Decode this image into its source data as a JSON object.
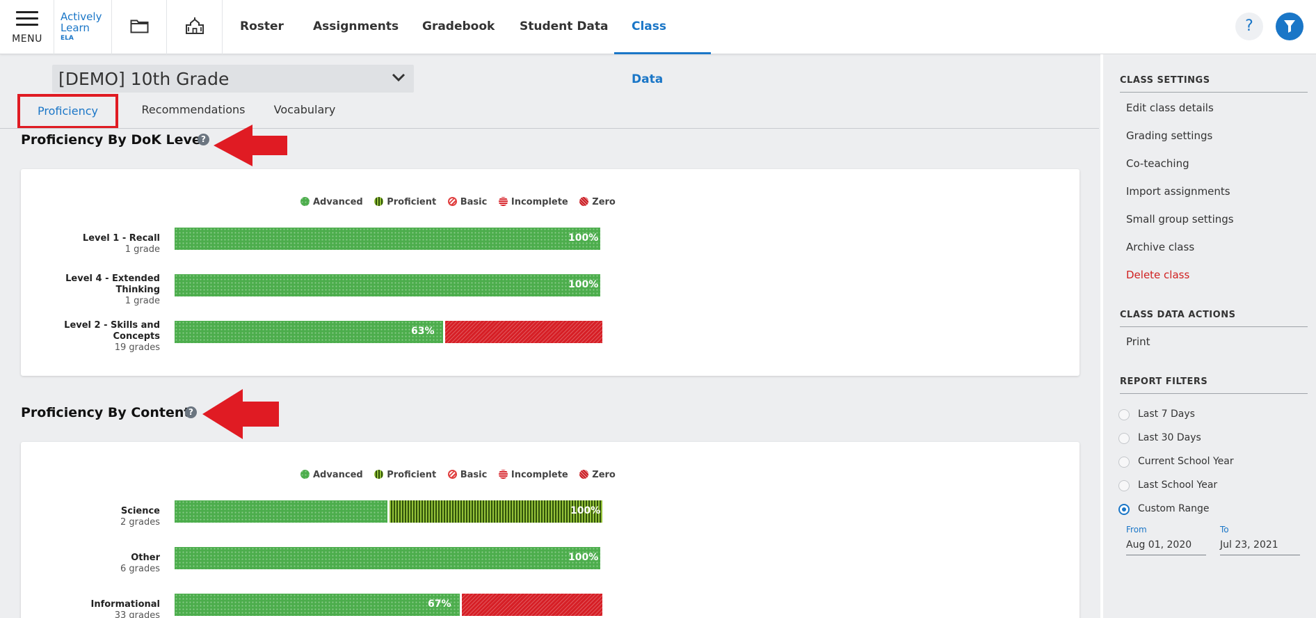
{
  "topbar": {
    "menu_label": "MENU",
    "logo": {
      "line1": "Actively",
      "line2": "Learn",
      "line3": "ELA"
    },
    "nav": [
      "Roster",
      "Assignments",
      "Gradebook",
      "Student Data",
      "Class Data"
    ],
    "active_nav": "Class Data",
    "help_label": "?"
  },
  "class_selector": {
    "value": "[DEMO] 10th Grade"
  },
  "tabs": [
    "Proficiency",
    "Recommendations",
    "Vocabulary"
  ],
  "active_tab": "Proficiency",
  "legend": [
    "Advanced",
    "Proficient",
    "Basic",
    "Incomplete",
    "Zero"
  ],
  "colors": {
    "accent": "#1a76c7",
    "advanced": "#4cad4c",
    "proficient": "#5a8a1e",
    "incomplete": "#d61f26",
    "danger": "#d02020",
    "annotation": "#e01b23"
  },
  "dok": {
    "title": "Proficiency By DoK Level",
    "rows": [
      {
        "label": "Level 1 - Recall",
        "sub": "1 grade",
        "pct_label": "100%",
        "advanced": 1.0,
        "proficient": 0.0,
        "incomplete": 0.0
      },
      {
        "label": "Level 4 - Extended Thinking",
        "sub": "1 grade",
        "pct_label": "100%",
        "advanced": 1.0,
        "proficient": 0.0,
        "incomplete": 0.0
      },
      {
        "label": "Level 2 - Skills and Concepts",
        "sub": "19 grades",
        "pct_label": "63%",
        "advanced": 0.63,
        "proficient": 0.0,
        "incomplete": 0.37
      }
    ]
  },
  "content": {
    "title": "Proficiency By Content",
    "rows": [
      {
        "label": "Science",
        "sub": "2 grades",
        "pct_label": "100%",
        "advanced": 0.5,
        "proficient": 0.5,
        "incomplete": 0.0
      },
      {
        "label": "Other",
        "sub": "6 grades",
        "pct_label": "100%",
        "advanced": 1.0,
        "proficient": 0.0,
        "incomplete": 0.0
      },
      {
        "label": "Informational",
        "sub": "33 grades",
        "pct_label": "67%",
        "advanced": 0.67,
        "proficient": 0.0,
        "incomplete": 0.33
      }
    ]
  },
  "sidebar": {
    "class_settings": {
      "heading": "CLASS SETTINGS",
      "items": [
        "Edit class details",
        "Grading settings",
        "Co-teaching",
        "Import assignments",
        "Small group settings",
        "Archive class",
        "Delete class"
      ]
    },
    "class_data_actions": {
      "heading": "CLASS DATA ACTIONS",
      "items": [
        "Print"
      ]
    },
    "report_filters": {
      "heading": "REPORT FILTERS",
      "options": [
        "Last 7 Days",
        "Last 30 Days",
        "Current School Year",
        "Last School Year",
        "Custom Range"
      ],
      "selected": "Custom Range",
      "from_label": "From",
      "from_value": "Aug 01, 2020",
      "to_label": "To",
      "to_value": "Jul 23, 2021"
    }
  }
}
